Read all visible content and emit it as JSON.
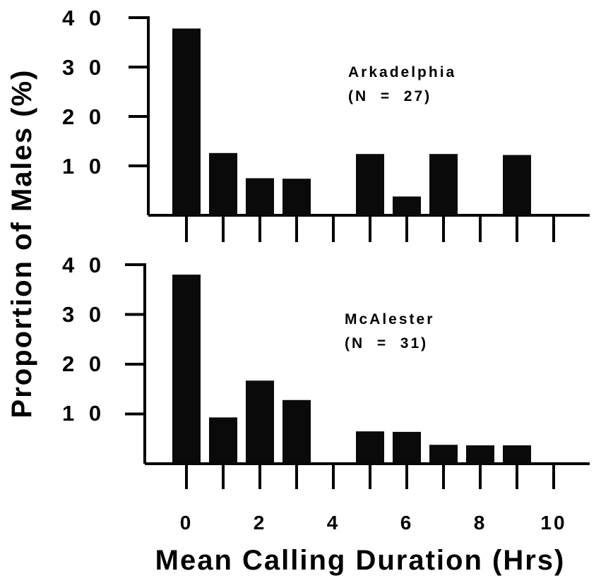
{
  "chart_data": {
    "type": "bar",
    "ylabel": "Proportion of Males (%)",
    "xlabel": "Mean Calling Duration (Hrs)",
    "x_tick_labels": [
      "0",
      "2",
      "4",
      "6",
      "8",
      "10"
    ],
    "x_tick_values": [
      0,
      2,
      4,
      6,
      8,
      10
    ],
    "xlim": [
      -0.3,
      11.3
    ],
    "panels": [
      {
        "label": "Arkadelphia",
        "n_label": "(N  =  27)",
        "ylim": [
          0,
          40
        ],
        "y_ticks": [
          10,
          20,
          30,
          40
        ],
        "y_tick_labels": [
          "1 0",
          "2 0",
          "3 0",
          "4 0"
        ],
        "x": [
          0,
          1,
          2,
          3,
          5,
          6,
          7,
          9
        ],
        "values": [
          37.8,
          12.6,
          7.5,
          7.4,
          12.4,
          3.8,
          12.4,
          12.2
        ]
      },
      {
        "label": "McAlester",
        "n_label": "(N  =  31)",
        "ylim": [
          0,
          40
        ],
        "y_ticks": [
          10,
          20,
          30,
          40
        ],
        "y_tick_labels": [
          "1 0",
          "2 0",
          "3 0",
          "4 0"
        ],
        "x": [
          0,
          1,
          2,
          3,
          5,
          6,
          7,
          8,
          9
        ],
        "values": [
          38.0,
          9.3,
          16.7,
          12.8,
          6.5,
          6.4,
          3.8,
          3.7,
          3.7
        ]
      }
    ]
  }
}
